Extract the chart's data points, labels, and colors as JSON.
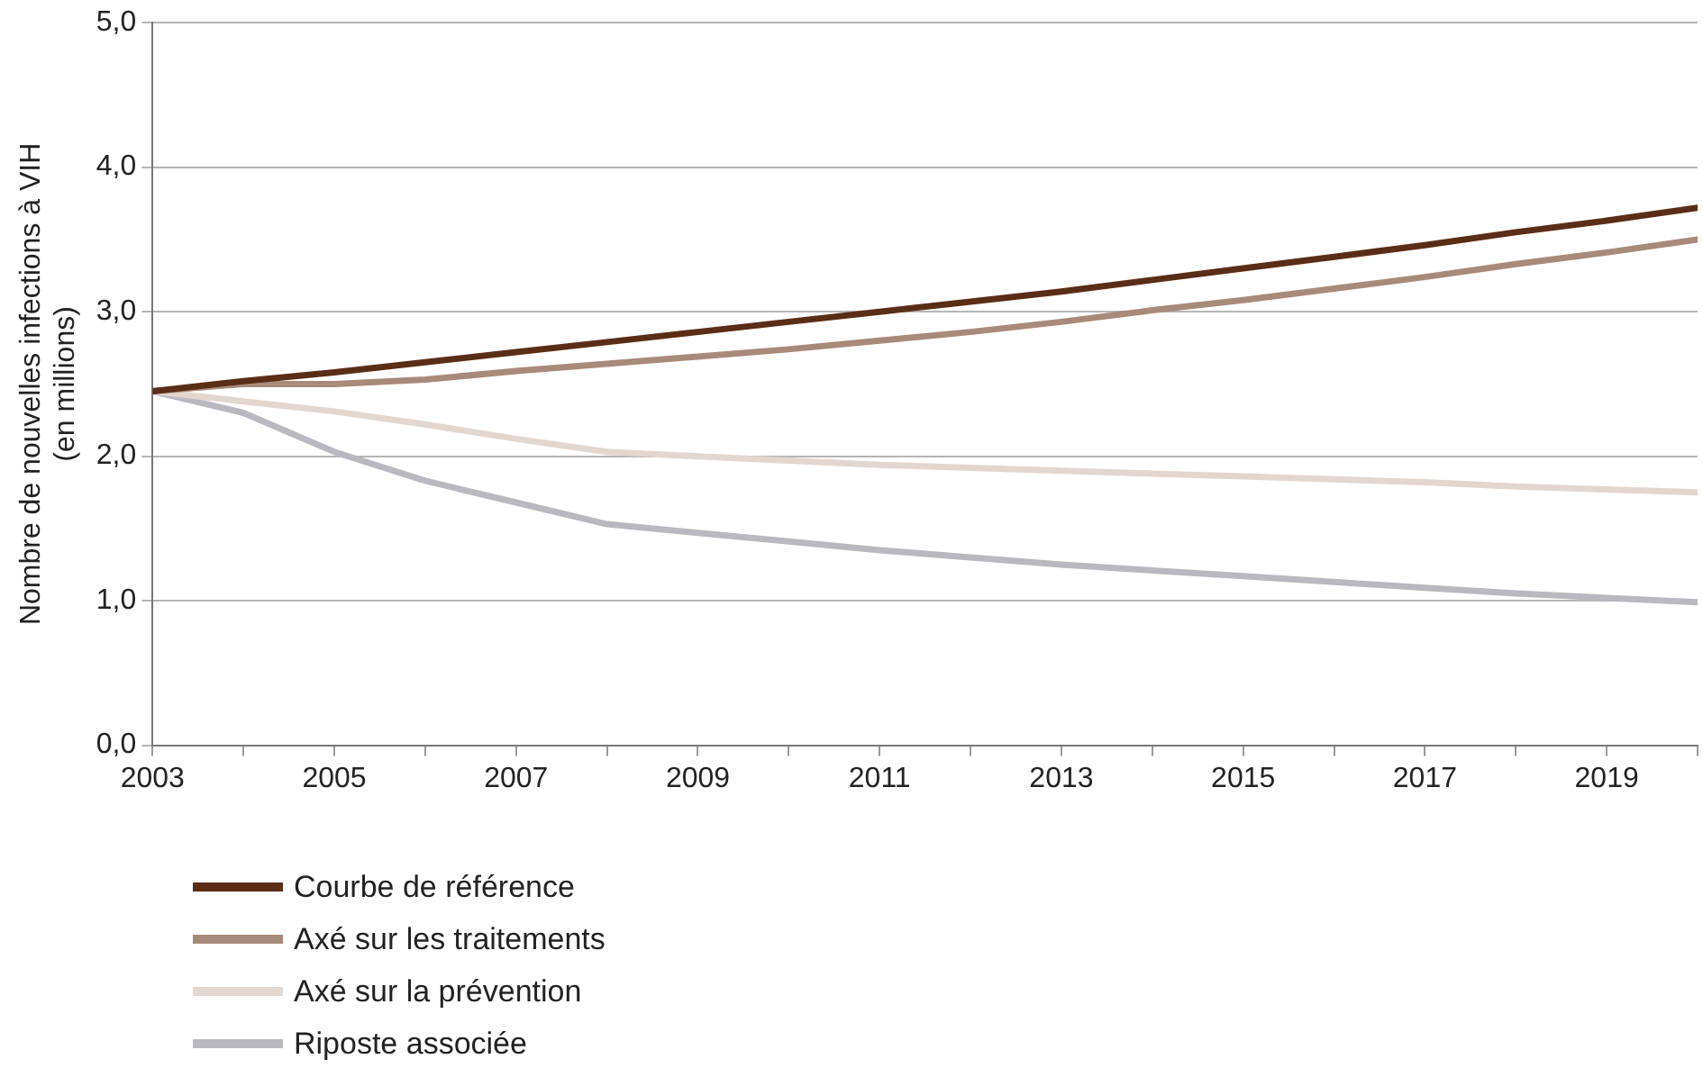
{
  "chart_data": {
    "type": "line",
    "ylabel": "Nombre de nouvelles infections à VIH\n(en millions)",
    "x": [
      2003,
      2004,
      2005,
      2006,
      2007,
      2008,
      2009,
      2010,
      2011,
      2012,
      2013,
      2014,
      2015,
      2016,
      2017,
      2018,
      2019,
      2020
    ],
    "xlim": [
      2003,
      2020
    ],
    "xticks": [
      2003,
      {
        "value": 2004,
        "label": null
      },
      2005,
      {
        "value": 2006,
        "label": null
      },
      2007,
      {
        "value": 2008,
        "label": null
      },
      2009,
      {
        "value": 2010,
        "label": null
      },
      2011,
      {
        "value": 2012,
        "label": null
      },
      2013,
      {
        "value": 2014,
        "label": null
      },
      2015,
      {
        "value": 2016,
        "label": null
      },
      2017,
      {
        "value": 2018,
        "label": null
      },
      2019,
      {
        "value": 2020,
        "label": null
      }
    ],
    "ylim": [
      0,
      5
    ],
    "yticks": [
      {
        "value": 0,
        "label": "0,0"
      },
      {
        "value": 1,
        "label": "1,0"
      },
      {
        "value": 2,
        "label": "2,0"
      },
      {
        "value": 3,
        "label": "3,0"
      },
      {
        "value": 4,
        "label": "4,0"
      },
      {
        "value": 5,
        "label": "5,0"
      }
    ],
    "grid": "y",
    "legend": "bottom left",
    "marker": "none",
    "line_style": "solid",
    "series": [
      {
        "name": "Courbe de référence",
        "color": "#5a2d17",
        "values": [
          2.45,
          2.52,
          2.58,
          2.65,
          2.72,
          2.79,
          2.86,
          2.93,
          3.0,
          3.07,
          3.14,
          3.22,
          3.3,
          3.38,
          3.46,
          3.55,
          3.63,
          3.72
        ]
      },
      {
        "name": "Axé sur les traitements",
        "color": "#a88a7a",
        "values": [
          2.45,
          2.5,
          2.5,
          2.53,
          2.59,
          2.64,
          2.69,
          2.74,
          2.8,
          2.86,
          2.93,
          3.01,
          3.08,
          3.16,
          3.24,
          3.33,
          3.41,
          3.5
        ]
      },
      {
        "name": "Axé sur la prévention",
        "color": "#e3d6cf",
        "values": [
          2.45,
          2.38,
          2.31,
          2.22,
          2.12,
          2.03,
          2.0,
          1.97,
          1.94,
          1.92,
          1.9,
          1.88,
          1.86,
          1.84,
          1.82,
          1.79,
          1.77,
          1.75
        ]
      },
      {
        "name": "Riposte associée",
        "color": "#b9b8c0",
        "values": [
          2.45,
          2.3,
          2.03,
          1.83,
          1.68,
          1.53,
          1.47,
          1.41,
          1.35,
          1.3,
          1.25,
          1.21,
          1.17,
          1.13,
          1.09,
          1.05,
          1.02,
          0.99
        ]
      }
    ]
  }
}
